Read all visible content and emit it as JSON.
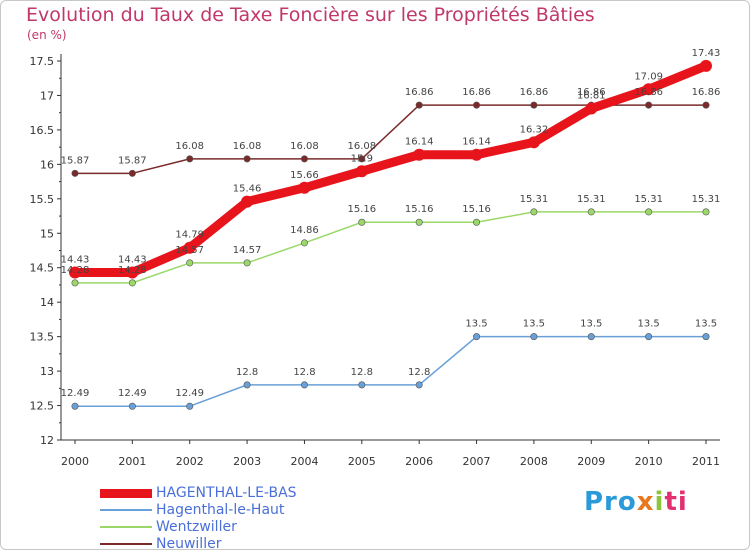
{
  "chart_data": {
    "type": "line",
    "title": "Evolution du Taux de Taxe Foncière sur les Propriétés Bâties",
    "ylabel": "(en %)",
    "xlabel": "",
    "ylim": [
      12,
      17.5
    ],
    "yticks": [
      12,
      12.5,
      13,
      13.5,
      14,
      14.5,
      15,
      15.5,
      16,
      16.5,
      17,
      17.5
    ],
    "ytick_labels": [
      "12",
      "12.5",
      "13",
      "13.5",
      "14",
      "14.5",
      "15",
      "15.5",
      "16",
      "16.5",
      "17",
      "17.5"
    ],
    "categories": [
      "2000",
      "2001",
      "2002",
      "2003",
      "2004",
      "2005",
      "2006",
      "2007",
      "2008",
      "2009",
      "2010",
      "2011"
    ],
    "series": [
      {
        "name": "Neuwiller",
        "color": "#7a2a2a",
        "values": [
          15.87,
          15.87,
          16.08,
          16.08,
          16.08,
          16.08,
          16.86,
          16.86,
          16.86,
          16.86,
          16.86,
          16.86
        ],
        "labels": [
          "15.87",
          "15.87",
          "16.08",
          "16.08",
          "16.08",
          "16.08",
          "16.86",
          "16.86",
          "16.86",
          "16.86",
          "16.86",
          "16.86"
        ]
      },
      {
        "name": "Wentzwiller",
        "color": "#9ad86a",
        "values": [
          14.28,
          14.28,
          14.57,
          14.57,
          14.86,
          15.16,
          15.16,
          15.16,
          15.31,
          15.31,
          15.31,
          15.31
        ],
        "labels": [
          "14.28",
          "14.28",
          "14.57",
          "14.57",
          "14.86",
          "15.16",
          "15.16",
          "15.16",
          "15.31",
          "15.31",
          "15.31",
          "15.31"
        ]
      },
      {
        "name": "Hagenthal-le-Haut",
        "color": "#6aa0d8",
        "values": [
          12.49,
          12.49,
          12.49,
          12.8,
          12.8,
          12.8,
          12.8,
          13.5,
          13.5,
          13.5,
          13.5,
          13.5
        ],
        "labels": [
          "12.49",
          "12.49",
          "12.49",
          "12.8",
          "12.8",
          "12.8",
          "12.8",
          "13.5",
          "13.5",
          "13.5",
          "13.5",
          "13.5"
        ]
      },
      {
        "name": "HAGENTHAL-LE-BAS",
        "color": "#e8141c",
        "values": [
          14.43,
          14.43,
          14.79,
          15.46,
          15.66,
          15.9,
          16.14,
          16.14,
          16.32,
          16.81,
          17.09,
          17.43
        ],
        "labels": [
          "14.43",
          "14.43",
          "14.79",
          "15.46",
          "15.66",
          "15.9",
          "16.14",
          "16.14",
          "16.32",
          "16.81",
          "17.09",
          "17.43"
        ]
      }
    ],
    "legend": [
      "HAGENTHAL-LE-BAS",
      "Hagenthal-le-Haut",
      "Wentzwiller",
      "Neuwiller"
    ],
    "legend_position": "bottom-left",
    "grid": false
  },
  "logo": {
    "p1": "Pro",
    "p2": "x",
    "p3": "i",
    "p4": "ti"
  }
}
